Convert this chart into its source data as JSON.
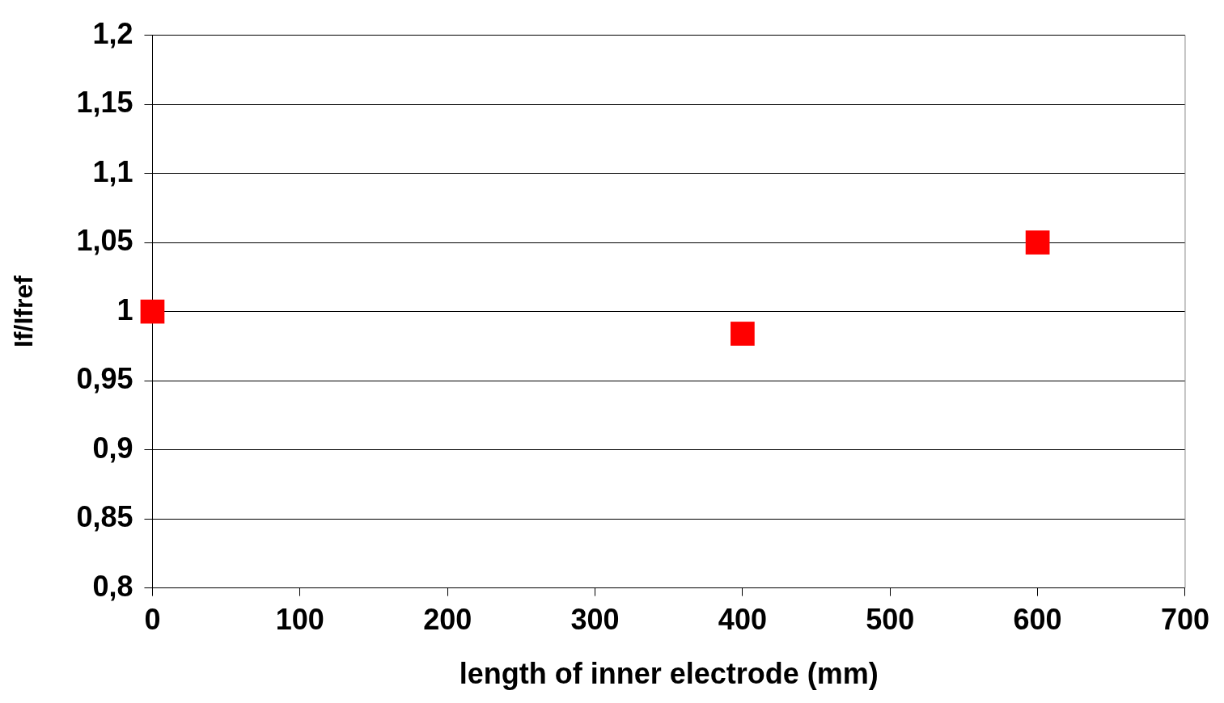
{
  "chart_data": {
    "type": "scatter",
    "xlabel": "length of inner electrode (mm)",
    "ylabel": "If/Ifref",
    "x": [
      0,
      400,
      600
    ],
    "series": [
      {
        "color": "#ff0000",
        "values": [
          1.0,
          0.984,
          1.05
        ]
      }
    ],
    "xlim": [
      0,
      700
    ],
    "xticks": [
      0,
      100,
      200,
      300,
      400,
      500,
      600,
      700
    ],
    "ylim": [
      0.8,
      1.2
    ],
    "yticks": [
      {
        "value": 0.8,
        "label": "0,8"
      },
      {
        "value": 0.85,
        "label": "0,85"
      },
      {
        "value": 0.9,
        "label": "0,9"
      },
      {
        "value": 0.95,
        "label": "0,95"
      },
      {
        "value": 1,
        "label": "1"
      },
      {
        "value": 1.05,
        "label": "1,05"
      },
      {
        "value": 1.1,
        "label": "1,1"
      },
      {
        "value": 1.15,
        "label": "1,15"
      },
      {
        "value": 1.2,
        "label": "1,2"
      }
    ],
    "grid": "y",
    "marker": "square",
    "legend": false
  }
}
